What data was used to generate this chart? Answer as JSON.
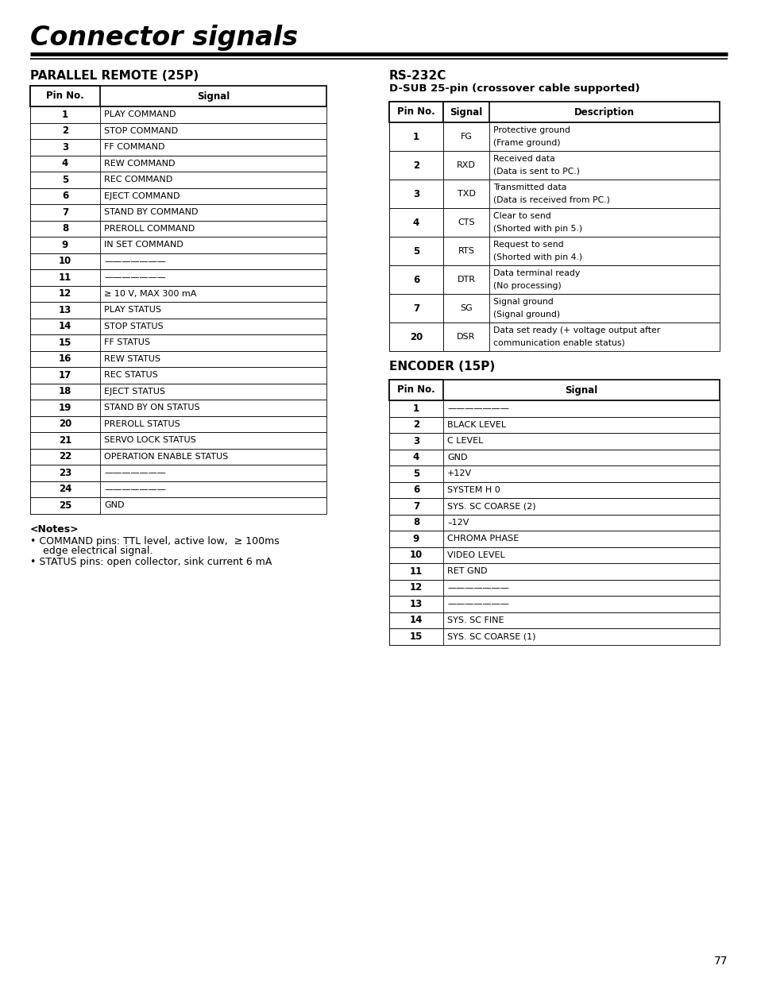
{
  "title": "Connector signals",
  "section1_title": "PARALLEL REMOTE (25P)",
  "section2_title": "RS-232C",
  "section2_subtitle": "D-SUB 25-pin (crossover cable supported)",
  "section3_title": "ENCODER (15P)",
  "parallel_remote_data": [
    [
      "1",
      "PLAY COMMAND"
    ],
    [
      "2",
      "STOP COMMAND"
    ],
    [
      "3",
      "FF COMMAND"
    ],
    [
      "4",
      "REW COMMAND"
    ],
    [
      "5",
      "REC COMMAND"
    ],
    [
      "6",
      "EJECT COMMAND"
    ],
    [
      "7",
      "STAND BY COMMAND"
    ],
    [
      "8",
      "PREROLL COMMAND"
    ],
    [
      "9",
      "IN SET COMMAND"
    ],
    [
      "10",
      "———————"
    ],
    [
      "11",
      "———————"
    ],
    [
      "12",
      "≥ 10 V, MAX 300 mA"
    ],
    [
      "13",
      "PLAY STATUS"
    ],
    [
      "14",
      "STOP STATUS"
    ],
    [
      "15",
      "FF STATUS"
    ],
    [
      "16",
      "REW STATUS"
    ],
    [
      "17",
      "REC STATUS"
    ],
    [
      "18",
      "EJECT STATUS"
    ],
    [
      "19",
      "STAND BY ON STATUS"
    ],
    [
      "20",
      "PREROLL STATUS"
    ],
    [
      "21",
      "SERVO LOCK STATUS"
    ],
    [
      "22",
      "OPERATION ENABLE STATUS"
    ],
    [
      "23",
      "———————"
    ],
    [
      "24",
      "———————"
    ],
    [
      "25",
      "GND"
    ]
  ],
  "rs232c_data": [
    [
      "1",
      "FG",
      "Protective ground",
      "(Frame ground)"
    ],
    [
      "2",
      "RXD",
      "Received data",
      "(Data is sent to PC.)"
    ],
    [
      "3",
      "TXD",
      "Transmitted data",
      "(Data is received from PC.)"
    ],
    [
      "4",
      "CTS",
      "Clear to send",
      "(Shorted with pin 5.)"
    ],
    [
      "5",
      "RTS",
      "Request to send",
      "(Shorted with pin 4.)"
    ],
    [
      "6",
      "DTR",
      "Data terminal ready",
      "(No processing)"
    ],
    [
      "7",
      "SG",
      "Signal ground",
      "(Signal ground)"
    ],
    [
      "20",
      "DSR",
      "Data set ready (+ voltage output after",
      "communication enable status)"
    ]
  ],
  "encoder_data": [
    [
      "1",
      "———————"
    ],
    [
      "2",
      "BLACK LEVEL"
    ],
    [
      "3",
      "C LEVEL"
    ],
    [
      "4",
      "GND"
    ],
    [
      "5",
      "+12V"
    ],
    [
      "6",
      "SYSTEM H 0"
    ],
    [
      "7",
      "SYS. SC COARSE (2)"
    ],
    [
      "8",
      "–12V"
    ],
    [
      "9",
      "CHROMA PHASE"
    ],
    [
      "10",
      "VIDEO LEVEL"
    ],
    [
      "11",
      "RET GND"
    ],
    [
      "12",
      "———————"
    ],
    [
      "13",
      "———————"
    ],
    [
      "14",
      "SYS. SC FINE"
    ],
    [
      "15",
      "SYS. SC COARSE (1)"
    ]
  ],
  "notes_title": "<Notes>",
  "notes_line1": "COMMAND pins: TTL level, active low,  ≥ 100ms",
  "notes_line2": "  edge electrical signal.",
  "notes_line3": "STATUS pins: open collector, sink current 6 mA",
  "page_number": "77"
}
